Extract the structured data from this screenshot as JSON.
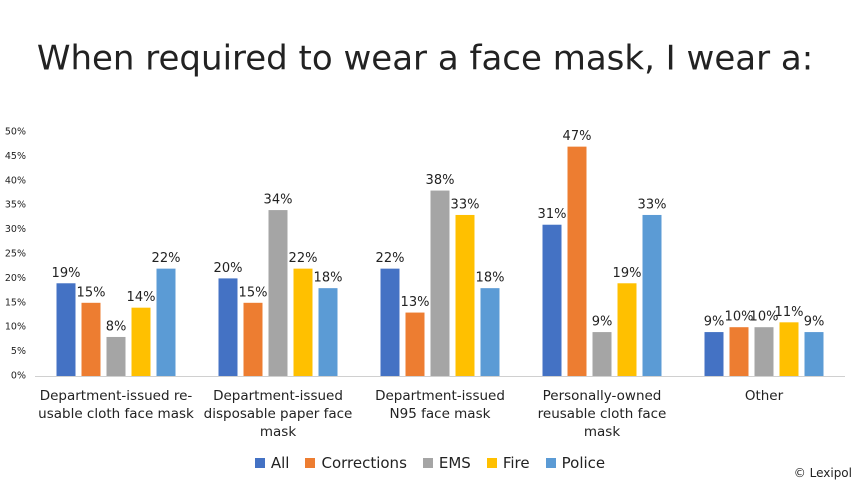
{
  "chart_data": {
    "type": "bar",
    "title": "When required to wear a face mask, I wear a:",
    "categories": [
      "Department-issued re-usable cloth face mask",
      "Department-issued disposable paper face mask",
      "Department-issued N95 face mask",
      "Personally-owned reusable cloth face mask",
      "Other"
    ],
    "series": [
      {
        "name": "All",
        "color": "#4472c4",
        "values": [
          19,
          20,
          22,
          31,
          9
        ],
        "value_labels": [
          "19%",
          "20%",
          "22%",
          "31%",
          "9%"
        ]
      },
      {
        "name": "Corrections",
        "color": "#ed7d31",
        "values": [
          15,
          15,
          13,
          47,
          10
        ],
        "value_labels": [
          "15%",
          "15%",
          "13%",
          "47%",
          "10%"
        ]
      },
      {
        "name": "EMS",
        "color": "#a5a5a5",
        "values": [
          8,
          34,
          38,
          9,
          10
        ],
        "value_labels": [
          "8%",
          "34%",
          "38%",
          "9%",
          "10%"
        ]
      },
      {
        "name": "Fire",
        "color": "#ffc000",
        "values": [
          14,
          22,
          33,
          19,
          11
        ],
        "value_labels": [
          "14%",
          "22%",
          "33%",
          "19%",
          "11%"
        ]
      },
      {
        "name": "Police",
        "color": "#5b9bd5",
        "values": [
          22,
          18,
          18,
          33,
          9
        ],
        "value_labels": [
          "22%",
          "18%",
          "18%",
          "33%",
          "9%"
        ]
      }
    ],
    "ylim": [
      0,
      50
    ],
    "yticks": [
      {
        "value": 0,
        "label": "0%"
      },
      {
        "value": 5,
        "label": "5%"
      },
      {
        "value": 10,
        "label": "10%"
      },
      {
        "value": 15,
        "label": "15%"
      },
      {
        "value": 20,
        "label": "20%"
      },
      {
        "value": 25,
        "label": "25%"
      },
      {
        "value": 30,
        "label": "30%"
      },
      {
        "value": 35,
        "label": "35%"
      },
      {
        "value": 40,
        "label": "40%"
      },
      {
        "value": 45,
        "label": "45%"
      },
      {
        "value": 50,
        "label": "50%"
      }
    ],
    "grid": false,
    "credit": "© Lexipol"
  }
}
